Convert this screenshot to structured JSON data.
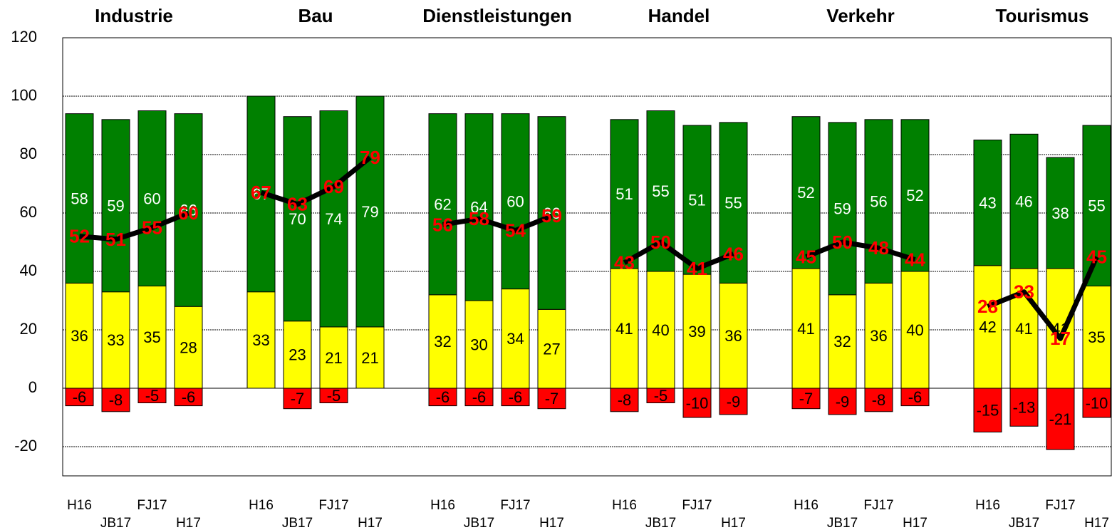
{
  "chart_data": {
    "type": "bar",
    "groups": [
      "Industrie",
      "Bau",
      "Dienstleistungen",
      "Handel",
      "Verkehr",
      "Tourismus"
    ],
    "categories": [
      "H16",
      "JB17",
      "FJ17",
      "H17",
      "H16",
      "JB17",
      "FJ17",
      "H17",
      "H16",
      "JB17",
      "FJ17",
      "H17",
      "H16",
      "JB17",
      "FJ17",
      "H17",
      "H16",
      "JB17",
      "FJ17",
      "H17",
      "H16",
      "JB17",
      "FJ17",
      "H17"
    ],
    "series": [
      {
        "kind": "bar",
        "color": "#ffff00",
        "label_color": "#000000",
        "values": [
          36,
          33,
          35,
          28,
          33,
          23,
          21,
          21,
          32,
          30,
          34,
          27,
          41,
          40,
          39,
          36,
          41,
          32,
          36,
          40,
          42,
          41,
          41,
          35
        ]
      },
      {
        "kind": "bar",
        "color": "#008000",
        "label_color": "#ffffff",
        "values": [
          58,
          59,
          60,
          66,
          67,
          70,
          74,
          79,
          62,
          64,
          60,
          66,
          51,
          55,
          51,
          55,
          52,
          59,
          56,
          52,
          43,
          46,
          38,
          55
        ]
      },
      {
        "kind": "bar",
        "color": "#ff0000",
        "label_color": "#000000",
        "values": [
          -6,
          -8,
          -5,
          -6,
          null,
          -7,
          -5,
          null,
          -6,
          -6,
          -6,
          -7,
          -8,
          -5,
          -10,
          -9,
          -7,
          -9,
          -8,
          -6,
          -15,
          -13,
          -21,
          -10
        ]
      },
      {
        "kind": "line",
        "color": "#000000",
        "label_color": "#ff0000",
        "values": [
          52,
          51,
          55,
          60,
          67,
          63,
          69,
          79,
          56,
          58,
          54,
          59,
          43,
          50,
          41,
          46,
          45,
          50,
          48,
          44,
          28,
          33,
          17,
          45
        ]
      }
    ],
    "ylim": [
      -30,
      120
    ],
    "yticks": [
      -20,
      0,
      20,
      40,
      60,
      80,
      100,
      120
    ],
    "grid": true
  }
}
